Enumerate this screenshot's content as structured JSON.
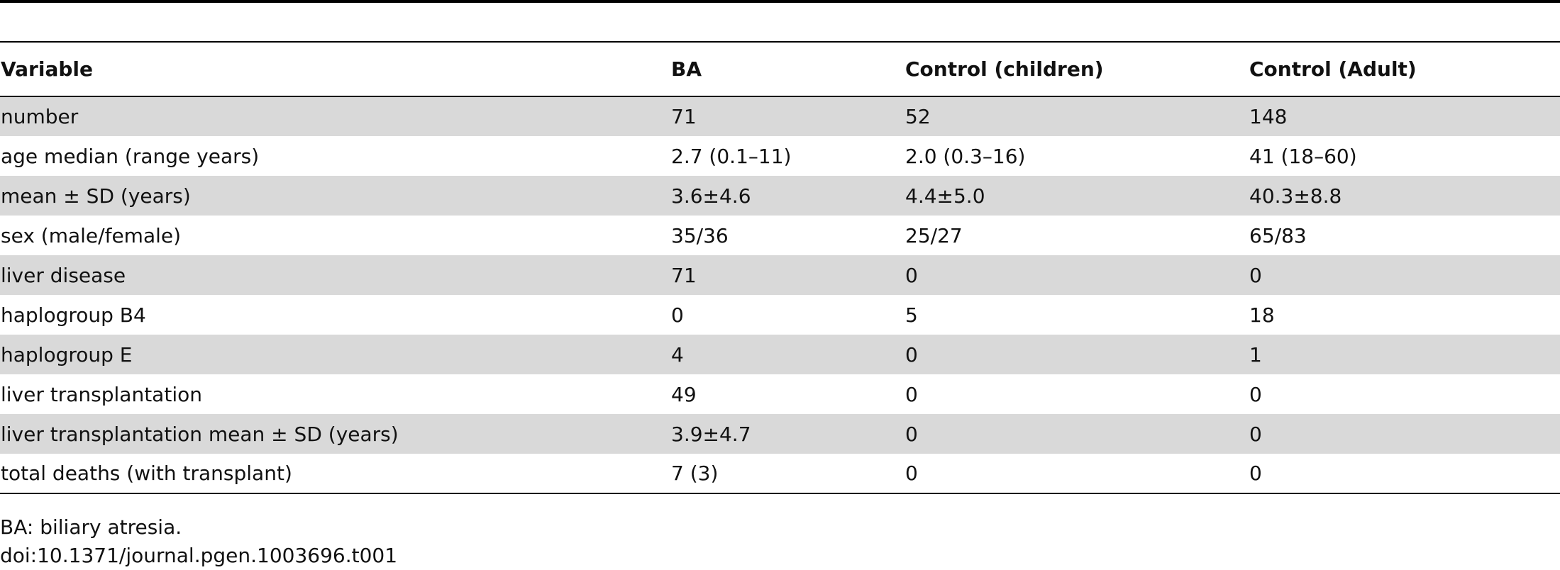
{
  "table": {
    "headers": [
      "Variable",
      "BA",
      "Control (children)",
      "Control (Adult)"
    ],
    "rows": [
      [
        "number",
        "71",
        "52",
        "148"
      ],
      [
        "age median (range years)",
        "2.7 (0.1–11)",
        "2.0 (0.3–16)",
        "41 (18–60)"
      ],
      [
        "mean ± SD (years)",
        "3.6±4.6",
        "4.4±5.0",
        "40.3±8.8"
      ],
      [
        "sex (male/female)",
        "35/36",
        "25/27",
        "65/83"
      ],
      [
        "liver disease",
        "71",
        "0",
        "0"
      ],
      [
        "haplogroup B4",
        "0",
        "5",
        "18"
      ],
      [
        "haplogroup E",
        "4",
        "0",
        "1"
      ],
      [
        "liver transplantation",
        "49",
        "0",
        "0"
      ],
      [
        "liver transplantation mean ± SD (years)",
        "3.9±4.7",
        "0",
        "0"
      ],
      [
        "total deaths (with transplant)",
        "7 (3)",
        "0",
        "0"
      ]
    ]
  },
  "footnotes": {
    "abbreviation": "BA: biliary atresia.",
    "doi": "doi:10.1371/journal.pgen.1003696.t001"
  }
}
